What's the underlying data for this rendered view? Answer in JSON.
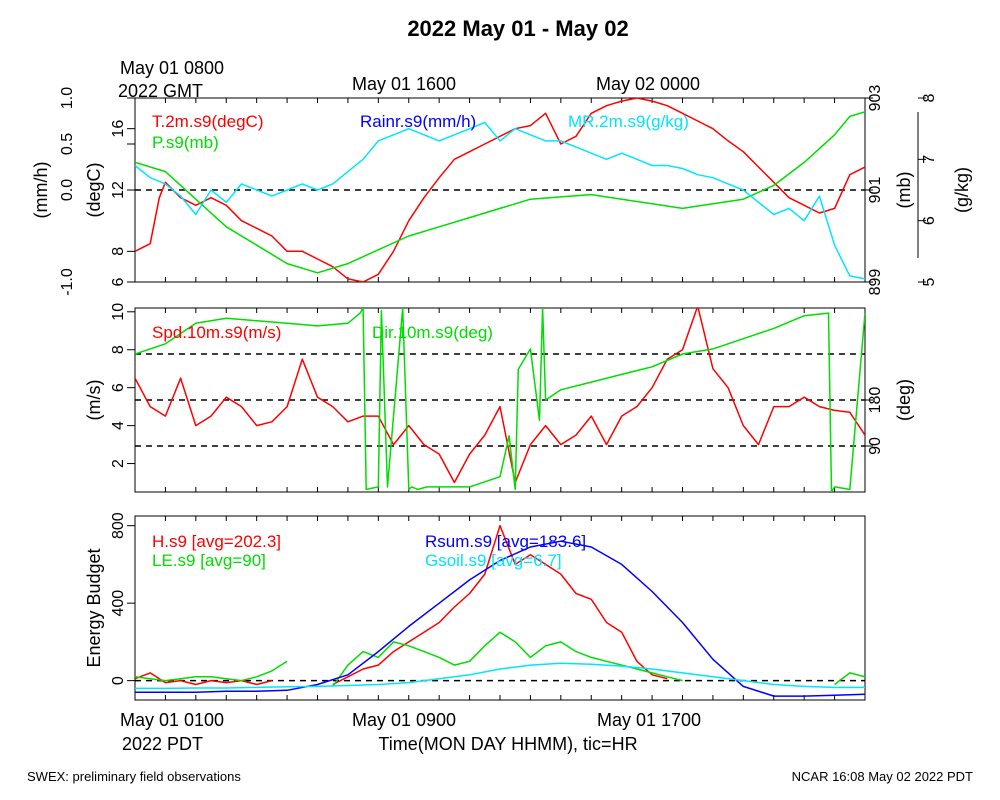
{
  "title": "2022 May 01 - May 02",
  "colors": {
    "red": "#ff0000",
    "green": "#00dd00",
    "cyan": "#00e5ff",
    "blue": "#0000ff",
    "black": "#000000"
  },
  "top_time_labels": {
    "start_line1": "May 01 0800",
    "start_line2": "2022 GMT",
    "mid": "May 01 1600",
    "end": "May 02 0000"
  },
  "bottom_time_labels": {
    "start": "May 01 0100",
    "start_line2": "2022 PDT",
    "mid": "May 01 0900",
    "end": "May 01 1700"
  },
  "x_axis_title": "Time(MON DAY HHMM), tic=HR",
  "footer_left": "SWEX: preliminary field observations",
  "footer_right": "NCAR 16:08 May 02 2022 PDT",
  "chart_data": [
    {
      "type": "line",
      "panel": "thermo",
      "x_unit": "hours since May 01 0100 PDT",
      "xlim": [
        0,
        24
      ],
      "axes": {
        "rain": {
          "label": "(mm/h)",
          "ylim": [
            -1.0,
            1.0
          ],
          "ticks": [
            "-1.0",
            "0.0",
            "0.5",
            "1.0"
          ],
          "tick_values": [
            -1,
            0,
            0.5,
            1
          ]
        },
        "temp": {
          "label": "(degC)",
          "ylim": [
            6,
            18
          ],
          "ticks": [
            "6",
            "8",
            "12",
            "16"
          ],
          "tick_values": [
            6,
            8,
            12,
            16
          ]
        },
        "press": {
          "label": "(mb)",
          "ylim": [
            899,
            903
          ],
          "ticks": [
            "899",
            "901",
            "903"
          ],
          "tick_values": [
            899,
            901,
            903
          ]
        },
        "mr": {
          "label": "(g/kg)",
          "ylim": [
            5,
            8
          ],
          "ticks": [
            "5",
            "6",
            "7",
            "8"
          ],
          "tick_values": [
            5,
            6,
            7,
            8
          ]
        }
      },
      "reference_lines": [
        {
          "axis": "rain",
          "value": 0.0,
          "style": "dashed"
        }
      ],
      "series": [
        {
          "name": "T.2m.s9(degC)",
          "axis": "temp",
          "color": "red",
          "x": [
            0,
            0.5,
            0.8,
            1,
            1.5,
            2,
            2.5,
            3,
            3.5,
            4,
            4.5,
            5,
            5.5,
            6,
            6.5,
            7,
            7.5,
            8,
            8.5,
            9,
            9.5,
            10,
            10.5,
            11,
            11.5,
            12,
            12.5,
            13,
            13.5,
            14,
            14.5,
            15,
            15.5,
            16,
            16.5,
            17,
            17.5,
            18,
            18.5,
            19,
            19.5,
            20,
            20.5,
            21,
            21.5,
            22,
            22.5,
            23,
            23.5,
            24
          ],
          "y": [
            8,
            8.5,
            11.5,
            12.5,
            11.5,
            11,
            11.5,
            11,
            10,
            9.5,
            9,
            8,
            8,
            7.5,
            7,
            6.2,
            6,
            6.5,
            8,
            10,
            11.5,
            12.8,
            14,
            14.5,
            15,
            15.5,
            16,
            16.2,
            17,
            15,
            15.5,
            17,
            17.5,
            17.8,
            18,
            17.8,
            17.5,
            17,
            16.5,
            16,
            15.2,
            14.5,
            13.5,
            12.5,
            11.5,
            11,
            10.5,
            10.8,
            13,
            13.5
          ]
        },
        {
          "name": "P.s9(mb)",
          "axis": "press",
          "color": "green",
          "x": [
            0,
            1,
            2,
            3,
            4,
            5,
            6,
            7,
            8,
            9,
            10,
            11,
            12,
            13,
            14,
            15,
            16,
            17,
            18,
            19,
            20,
            21,
            22,
            23,
            23.5,
            24
          ],
          "y": [
            901.6,
            901.4,
            900.8,
            900.2,
            899.8,
            899.4,
            899.2,
            899.4,
            899.7,
            900,
            900.2,
            900.4,
            900.6,
            900.8,
            900.85,
            900.9,
            900.8,
            900.7,
            900.6,
            900.7,
            900.8,
            901.1,
            901.6,
            902.2,
            902.6,
            902.7
          ]
        },
        {
          "name": "MR.2m.s9(g/kg)",
          "axis": "mr",
          "color": "cyan",
          "x": [
            0,
            0.5,
            1,
            1.5,
            2,
            2.5,
            3,
            3.5,
            4,
            4.5,
            5,
            5.5,
            6,
            6.5,
            7,
            7.5,
            8,
            8.5,
            9,
            9.5,
            10,
            10.5,
            11,
            11.5,
            12,
            12.5,
            13,
            13.5,
            14,
            14.5,
            15,
            15.5,
            16,
            16.5,
            17,
            17.5,
            18,
            18.5,
            19,
            19.5,
            20,
            20.5,
            21,
            21.5,
            22,
            22.5,
            23,
            23.5,
            24
          ],
          "y": [
            6.9,
            6.7,
            6.6,
            6.4,
            6.1,
            6.5,
            6.3,
            6.6,
            6.5,
            6.4,
            6.5,
            6.6,
            6.5,
            6.6,
            6.8,
            7,
            7.3,
            7.4,
            7.5,
            7.4,
            7.3,
            7.4,
            7.5,
            7.6,
            7.3,
            7.5,
            7.4,
            7.3,
            7.3,
            7.2,
            7.1,
            7,
            7.1,
            7,
            6.9,
            6.9,
            6.85,
            6.75,
            6.7,
            6.6,
            6.5,
            6.3,
            6.1,
            6.2,
            6.0,
            6.4,
            5.6,
            5.1,
            5.05
          ]
        }
      ],
      "legend": [
        {
          "text": "T.2m.s9(degC)",
          "color": "red"
        },
        {
          "text": "P.s9(mb)",
          "color": "green"
        },
        {
          "text": "Rainr.s9(mm/h)",
          "color": "blue"
        },
        {
          "text": "MR.2m.s9(g/kg)",
          "color": "cyan"
        }
      ]
    },
    {
      "type": "line",
      "panel": "wind",
      "x_unit": "hours since May 01 0100 PDT",
      "xlim": [
        0,
        24
      ],
      "axes": {
        "spd": {
          "label": "(m/s)",
          "ylim": [
            0.5,
            10.2
          ],
          "ticks": [
            "2",
            "4",
            "6",
            "8",
            "10"
          ],
          "tick_values": [
            2,
            4,
            6,
            8,
            10
          ]
        },
        "dir": {
          "label": "(deg)",
          "ylim": [
            0,
            360
          ],
          "ticks": [
            "90",
            "180"
          ],
          "tick_values": [
            90,
            180
          ]
        }
      },
      "reference_lines": [
        {
          "axis": "dir",
          "value": 90,
          "style": "dashed"
        },
        {
          "axis": "dir",
          "value": 180,
          "style": "dashed"
        },
        {
          "axis": "dir",
          "value": 270,
          "style": "dashed"
        }
      ],
      "series": [
        {
          "name": "Spd.10m.s9(m/s)",
          "axis": "spd",
          "color": "red",
          "x": [
            0,
            0.5,
            1,
            1.5,
            2,
            2.5,
            3,
            3.5,
            4,
            4.5,
            5,
            5.5,
            6,
            6.5,
            7,
            7.5,
            8,
            8.5,
            9,
            9.5,
            10,
            10.5,
            11,
            11.5,
            12,
            12.5,
            13,
            13.5,
            14,
            14.5,
            15,
            15.5,
            16,
            16.5,
            17,
            17.5,
            18,
            18.5,
            19,
            19.5,
            20,
            20.5,
            21,
            21.5,
            22,
            22.5,
            23,
            23.5,
            24
          ],
          "y": [
            6.5,
            5,
            4.5,
            6.5,
            4,
            4.5,
            5.5,
            5,
            4,
            4.2,
            5,
            7.5,
            5.5,
            5,
            4.2,
            4.5,
            4.5,
            3,
            4,
            3,
            2.5,
            1,
            2.5,
            3.5,
            5,
            1,
            3,
            4,
            3,
            3.5,
            4.5,
            3,
            4.5,
            5,
            6,
            7.5,
            8,
            10.3,
            7,
            6,
            4,
            3,
            5,
            5,
            5.5,
            5,
            4.8,
            4.7,
            3.5
          ]
        },
        {
          "name": "Dir.10m.s9(deg)",
          "axis": "dir",
          "color": "green",
          "x": [
            0,
            1,
            2,
            3,
            4,
            5,
            6,
            7,
            7.4,
            7.5,
            7.6,
            8,
            8.1,
            8.3,
            8.8,
            9,
            9.1,
            9.3,
            9.6,
            10,
            11,
            12,
            12.3,
            12.5,
            12.6,
            13,
            13.3,
            13.4,
            13.5,
            14,
            15,
            16,
            17,
            18,
            19,
            20,
            21,
            22,
            22.8,
            22.9,
            23,
            23.5,
            24
          ],
          "y": [
            270,
            290,
            330,
            340,
            335,
            330,
            325,
            330,
            350,
            360,
            5,
            10,
            355,
            10,
            360,
            5,
            10,
            5,
            10,
            10,
            10,
            30,
            110,
            5,
            240,
            280,
            140,
            360,
            180,
            200,
            215,
            230,
            245,
            270,
            280,
            300,
            320,
            345,
            350,
            0,
            10,
            5,
            350
          ]
        }
      ],
      "legend": [
        {
          "text": "Spd.10m.s9(m/s)",
          "color": "red"
        },
        {
          "text": "Dir.10m.s9(deg)",
          "color": "green"
        }
      ]
    },
    {
      "type": "line",
      "panel": "energy",
      "x_unit": "hours since May 01 0100 PDT",
      "xlim": [
        0,
        24
      ],
      "axes": {
        "e": {
          "label": "Energy Budget",
          "ylim": [
            -100,
            850
          ],
          "ticks": [
            "0",
            "400",
            "800"
          ],
          "tick_values": [
            0,
            400,
            800
          ]
        }
      },
      "reference_lines": [
        {
          "axis": "e",
          "value": 0,
          "style": "dashed"
        }
      ],
      "series": [
        {
          "name": "H.s9 [avg=202.3]",
          "axis": "e",
          "color": "red",
          "x": [
            0,
            0.5,
            1,
            1.5,
            2,
            2.5,
            3,
            3.5,
            4,
            4.5,
            5,
            5.5,
            6,
            6.5,
            7,
            7.5,
            8,
            8.5,
            9,
            9.5,
            10,
            10.5,
            11,
            11.5,
            12,
            12.5,
            13,
            13.5,
            14,
            14.5,
            15,
            15.5,
            16,
            16.5,
            17,
            17.5,
            18,
            18.5,
            19,
            19.5,
            20
          ],
          "y": [
            10,
            40,
            -10,
            0,
            -20,
            0,
            -10,
            0,
            -20,
            0,
            null,
            null,
            null,
            -20,
            20,
            60,
            80,
            150,
            200,
            250,
            300,
            380,
            450,
            550,
            800,
            600,
            650,
            600,
            550,
            450,
            420,
            300,
            250,
            100,
            30,
            10,
            null,
            null,
            null,
            null,
            null
          ]
        },
        {
          "name": "LE.s9 [avg=90]",
          "axis": "e",
          "color": "green",
          "x": [
            0,
            0.5,
            1,
            1.5,
            2,
            2.5,
            3,
            3.5,
            4,
            4.5,
            5,
            5.5,
            6,
            6.5,
            7,
            7.5,
            8,
            8.5,
            9,
            9.5,
            10,
            10.5,
            11,
            11.5,
            12,
            12.5,
            13,
            13.5,
            14,
            14.5,
            15,
            15.5,
            16,
            16.5,
            17,
            17.5,
            18,
            18.5,
            19,
            19.5,
            20,
            20.5,
            21,
            21.5,
            22,
            22.5,
            23,
            23.5,
            24
          ],
          "y": [
            20,
            10,
            0,
            10,
            20,
            20,
            10,
            0,
            20,
            50,
            100,
            null,
            null,
            -30,
            80,
            150,
            120,
            200,
            180,
            150,
            120,
            80,
            100,
            180,
            250,
            200,
            120,
            180,
            200,
            150,
            120,
            100,
            80,
            60,
            40,
            20,
            0,
            null,
            null,
            null,
            null,
            null,
            null,
            null,
            null,
            null,
            -20,
            40,
            20
          ]
        },
        {
          "name": "Rsum.s9 [avg=183.6]",
          "axis": "e",
          "color": "blue",
          "x": [
            0,
            1,
            2,
            3,
            4,
            5,
            6,
            7,
            8,
            9,
            10,
            11,
            12,
            13,
            14,
            15,
            16,
            17,
            18,
            19,
            20,
            21,
            22,
            23,
            24
          ],
          "y": [
            -60,
            -60,
            -60,
            -55,
            -55,
            -50,
            -20,
            30,
            150,
            280,
            400,
            520,
            620,
            690,
            720,
            690,
            600,
            460,
            300,
            110,
            -30,
            -80,
            -80,
            -75,
            -70
          ]
        },
        {
          "name": "Gsoil.s9 [avg=6.7]",
          "axis": "e",
          "color": "cyan",
          "x": [
            0,
            1,
            2,
            3,
            4,
            5,
            6,
            7,
            8,
            9,
            10,
            11,
            12,
            13,
            14,
            15,
            16,
            17,
            18,
            19,
            20,
            21,
            22,
            23,
            24
          ],
          "y": [
            -40,
            -40,
            -38,
            -38,
            -35,
            -32,
            -30,
            -25,
            -20,
            -10,
            10,
            30,
            60,
            80,
            90,
            85,
            75,
            60,
            40,
            20,
            0,
            -20,
            -30,
            -35,
            -35
          ]
        }
      ],
      "legend": [
        {
          "text": "H.s9 [avg=202.3]",
          "color": "red"
        },
        {
          "text": "LE.s9 [avg=90]",
          "color": "green"
        },
        {
          "text": "Rsum.s9 [avg=183.6]",
          "color": "blue"
        },
        {
          "text": "Gsoil.s9 [avg=6.7]",
          "color": "cyan"
        }
      ]
    }
  ]
}
